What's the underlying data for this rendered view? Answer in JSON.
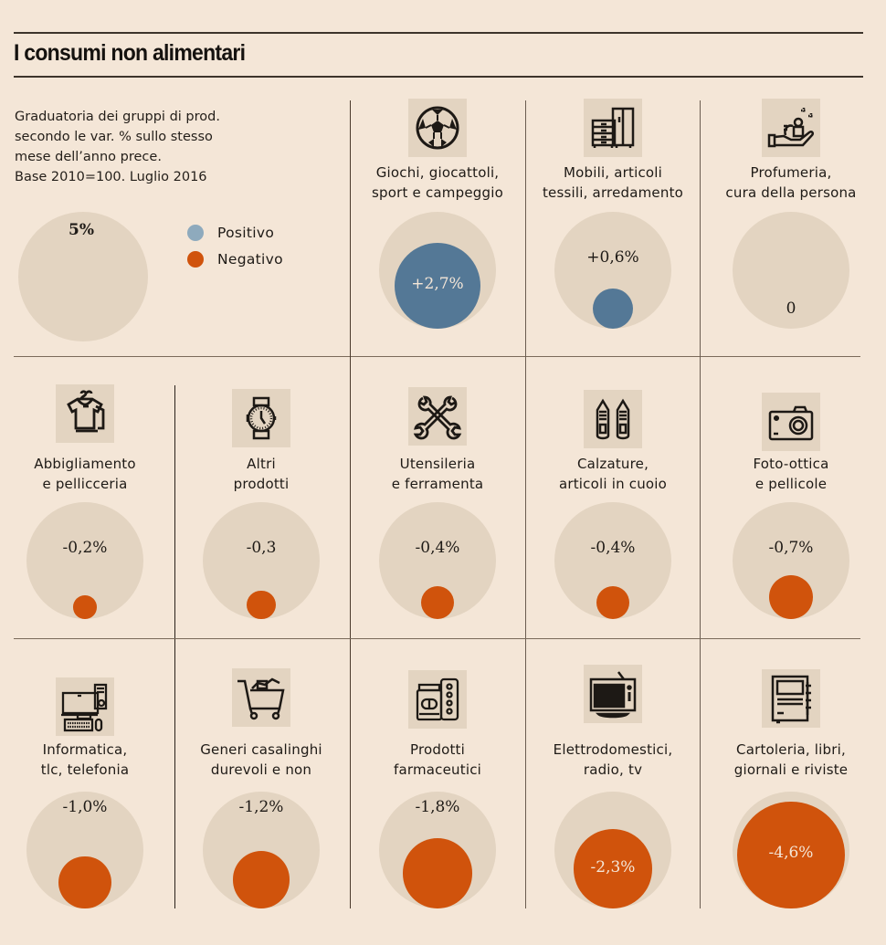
{
  "header": {
    "title": "I consumi non alimentari",
    "subtitle": "Graduatoria dei gruppi di prod.\nsecondo le var. % sullo stesso\nmese dell’anno prece.\nBase 2010=100. Luglio 2016"
  },
  "legend": {
    "scale_label": "5%",
    "scale_value": 5,
    "items": [
      {
        "label": "Positivo",
        "color": "#547896",
        "dot_color": "#8eaabd"
      },
      {
        "label": "Negativo",
        "color": "#d0530c",
        "dot_color": "#d0530c"
      }
    ]
  },
  "colors": {
    "background": "#f4e6d7",
    "circle_bg": "#e3d4c1",
    "positive": "#547896",
    "negative": "#d0530c"
  },
  "chart_data": {
    "type": "bubble",
    "title": "I consumi non alimentari",
    "subtitle": "Graduatoria dei gruppi di prod. secondo le var. % sullo stesso mese dell’anno prece. Base 2010=100. Luglio 2016",
    "unit": "%",
    "max_scale": 5,
    "categories": [
      {
        "label": "Giochi, giocattoli,\nsport e campeggio",
        "value": 2.7,
        "display": "+2,7%",
        "icon": "soccer-ball-icon"
      },
      {
        "label": "Mobili, articoli\ntessili, arredamento",
        "value": 0.6,
        "display": "+0,6%",
        "icon": "furniture-icon"
      },
      {
        "label": "Profumeria,\ncura della persona",
        "value": 0,
        "display": "0",
        "icon": "cosmetics-hand-icon"
      },
      {
        "label": "Abbigliamento\ne pellicceria",
        "value": -0.2,
        "display": "-0,2%",
        "icon": "tshirt-icon"
      },
      {
        "label": "Altri\nprodotti",
        "value": -0.3,
        "display": "-0,3",
        "icon": "watch-icon"
      },
      {
        "label": "Utensileria\ne ferramenta",
        "value": -0.4,
        "display": "-0,4%",
        "icon": "wrenches-icon"
      },
      {
        "label": "Calzature,\narticoli in cuoio",
        "value": -0.4,
        "display": "-0,4%",
        "icon": "shoes-icon"
      },
      {
        "label": "Foto-ottica\ne pellicole",
        "value": -0.7,
        "display": "-0,7%",
        "icon": "camera-icon"
      },
      {
        "label": "Informatica,\ntlc, telefonia",
        "value": -1.0,
        "display": "-1,0%",
        "icon": "computer-icon"
      },
      {
        "label": "Generi casalinghi\ndurevoli e non",
        "value": -1.2,
        "display": "-1,2%",
        "icon": "shopping-cart-icon"
      },
      {
        "label": "Prodotti\nfarmaceutici",
        "value": -1.8,
        "display": "-1,8%",
        "icon": "pharma-icon"
      },
      {
        "label": "Elettrodomestici,\nradio, tv",
        "value": -2.3,
        "display": "-2,3%",
        "icon": "tv-icon"
      },
      {
        "label": "Cartoleria, libri,\ngiornali e riviste",
        "value": -4.6,
        "display": "-4,6%",
        "icon": "notebook-icon"
      }
    ]
  }
}
